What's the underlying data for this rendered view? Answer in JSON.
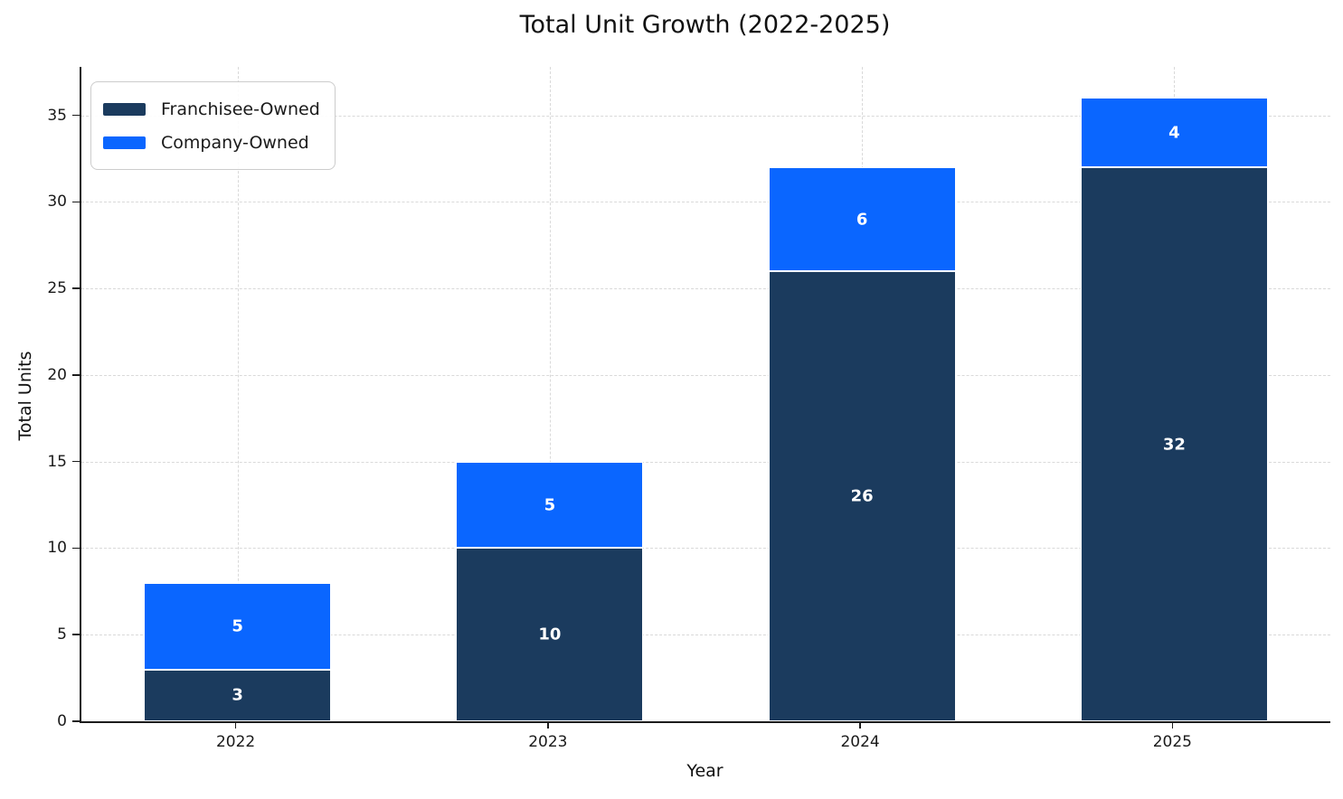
{
  "chart_data": {
    "type": "bar",
    "stacked": true,
    "title": "Total Unit Growth (2022-2025)",
    "xlabel": "Year",
    "ylabel": "Total Units",
    "categories": [
      "2022",
      "2023",
      "2024",
      "2025"
    ],
    "series": [
      {
        "name": "Franchisee-Owned",
        "color": "#1b3b5e",
        "values": [
          3,
          10,
          26,
          32
        ]
      },
      {
        "name": "Company-Owned",
        "color": "#0a66ff",
        "values": [
          5,
          5,
          6,
          4
        ]
      }
    ],
    "ylim": [
      0,
      37.8
    ],
    "yticks": [
      0,
      5,
      10,
      15,
      20,
      25,
      30,
      35
    ],
    "bar_width_fraction": 0.6,
    "bar_label_color": "#ffffff",
    "bar_edge_color": "#ffffff",
    "grid": {
      "visible": true,
      "style": "dashed",
      "color": "#d9d9d9",
      "axes": "both"
    },
    "legend": {
      "position": "upper-left"
    },
    "spine_color": "#1c1c1c",
    "background": "#ffffff"
  }
}
